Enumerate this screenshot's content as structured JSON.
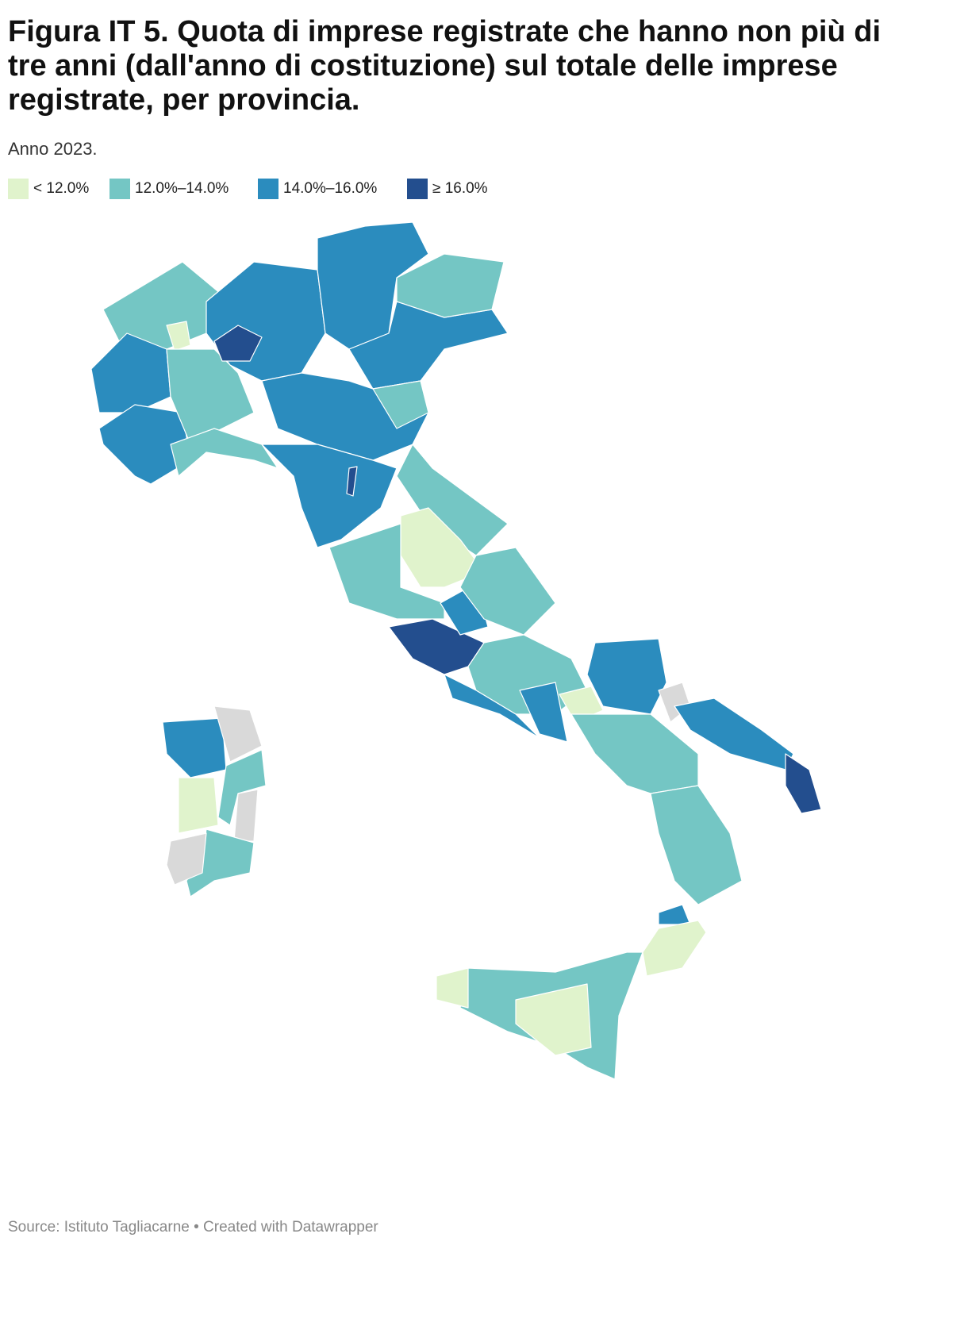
{
  "header": {
    "title": [
      "Figura IT 5. Quota di imprese registrate che hanno non più di",
      "tre anni (dall'anno di costituzione) sul totale delle imprese",
      "registrate, per provincia."
    ],
    "subtitle": "Anno 2023."
  },
  "legend": [
    {
      "label": "< 12.0%",
      "color": "#e0f3cc"
    },
    {
      "label": "12.0%–14.0%",
      "color": "#74c6c4"
    },
    {
      "label": "14.0%–16.0%",
      "color": "#2b8cbe"
    },
    {
      "label": "≥ 16.0%",
      "color": "#234e8e"
    }
  ],
  "footer": {
    "source": "Source: Istituto Tagliacarne • Created with Datawrapper"
  }
}
